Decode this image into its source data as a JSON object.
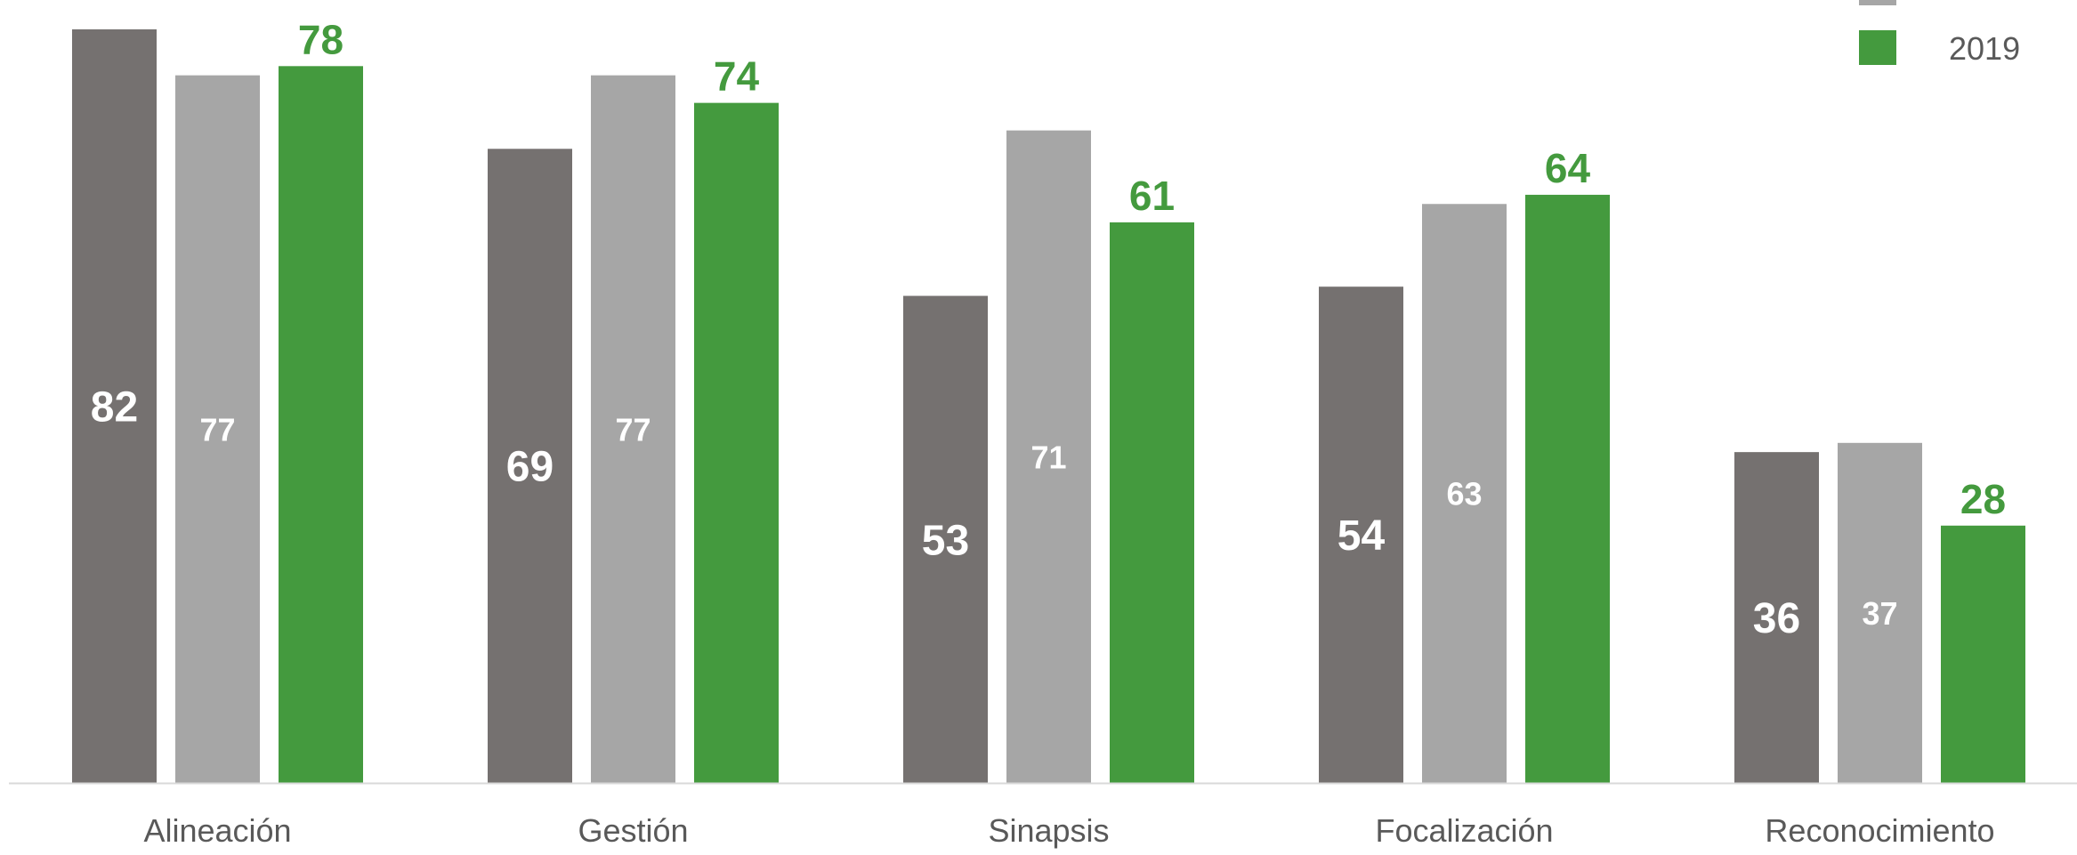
{
  "chart_data": {
    "type": "bar",
    "categories": [
      "Alineación",
      "Gestión",
      "Sinapsis",
      "Focalización",
      "Reconocimiento"
    ],
    "series": [
      {
        "values": [
          82,
          69,
          53,
          54,
          36
        ],
        "color": "#757170"
      },
      {
        "values": [
          77,
          77,
          71,
          63,
          37
        ],
        "color": "#a6a6a6"
      },
      {
        "name": "2019",
        "values": [
          78,
          74,
          61,
          64,
          28
        ],
        "color": "#449a3e"
      }
    ],
    "legend": {
      "placement": "top-right",
      "entries": [
        "",
        "2019"
      ]
    },
    "ylim": [
      0,
      82
    ],
    "grid": false,
    "xlabel": "",
    "ylabel": ""
  }
}
